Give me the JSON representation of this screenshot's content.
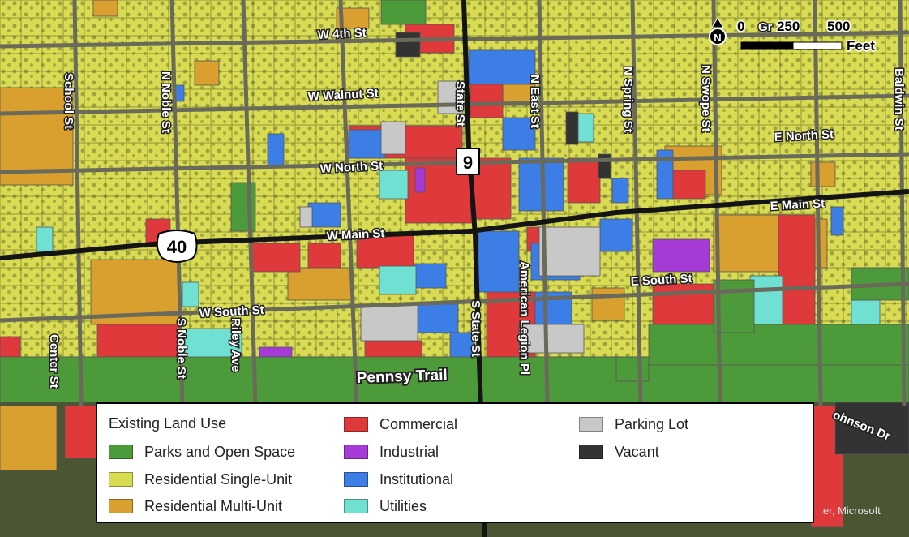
{
  "colors": {
    "parks": "#4d9a3a",
    "residential_single": "#d9dc52",
    "residential_multi": "#d9a030",
    "commercial": "#e0393b",
    "industrial": "#a53ad6",
    "institutional": "#3d7ee6",
    "utilities": "#6fe0d2",
    "parking": "#c8c8c8",
    "vacant": "#333333",
    "road": "#141414"
  },
  "streets": {
    "w_4th": "W 4th St",
    "w_walnut": "W Walnut St",
    "w_north": "W North St",
    "e_north": "E North St",
    "w_main": "W Main St",
    "e_main": "E Main St",
    "w_south": "W South St",
    "e_south": "E South St",
    "school": "School St",
    "n_noble": "N Noble St",
    "state": "State St",
    "n_east": "N East St",
    "n_spring": "N Spring St",
    "n_swope": "N Swope St",
    "baldwin": "Baldwin St",
    "center": "Center St",
    "s_noble": "S Noble St",
    "riley": "Riley Ave",
    "s_state": "S State St",
    "american_legion": "American Legion Pl",
    "johnson": "ohnson Dr",
    "pennsy": "Pennsy Trail",
    "gr": "Gr"
  },
  "shields": {
    "route_9": "9",
    "route_40": "40"
  },
  "north_arrow": {
    "label": "N",
    "icon": "north-arrow-icon"
  },
  "scale_bar": {
    "tick_0": "0",
    "tick_250": "250",
    "tick_500": "500",
    "unit": "Feet"
  },
  "legend": {
    "title": "Existing Land Use",
    "items": [
      {
        "key": "parks",
        "label": "Parks and Open Space"
      },
      {
        "key": "residential_single",
        "label": "Residential Single-Unit"
      },
      {
        "key": "residential_multi",
        "label": "Residential Multi-Unit"
      },
      {
        "key": "commercial",
        "label": "Commercial"
      },
      {
        "key": "industrial",
        "label": "Industrial"
      },
      {
        "key": "institutional",
        "label": "Institutional"
      },
      {
        "key": "utilities",
        "label": "Utilities"
      },
      {
        "key": "parking",
        "label": "Parking Lot"
      },
      {
        "key": "vacant",
        "label": "Vacant"
      }
    ]
  },
  "attribution": "er, Microsoft"
}
